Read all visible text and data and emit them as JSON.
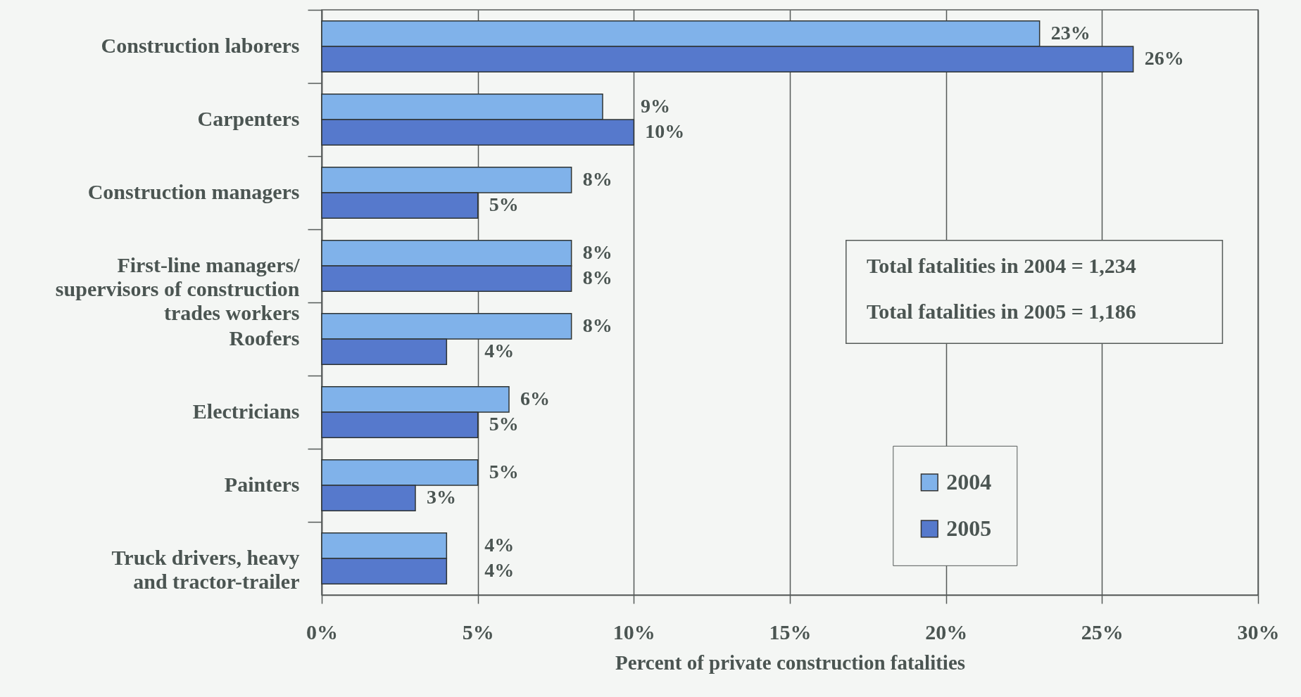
{
  "chart_data": {
    "type": "bar",
    "orientation": "horizontal",
    "categories": [
      "Construction laborers",
      "Carpenters",
      "Construction managers",
      "First-line managers/\nsupervisors of construction\ntrades workers",
      "Roofers",
      "Electricians",
      "Painters",
      "Truck drivers, heavy\nand tractor-trailer"
    ],
    "series": [
      {
        "name": "2004",
        "color": "#80b2ea",
        "values": [
          23,
          9,
          8,
          8,
          8,
          6,
          5,
          4
        ],
        "value_labels": [
          "23%",
          "9%",
          "8%",
          "8%",
          "8%",
          "6%",
          "5%",
          "4%"
        ]
      },
      {
        "name": "2005",
        "color": "#5679cc",
        "values": [
          26,
          10,
          5,
          8,
          4,
          5,
          3,
          4
        ],
        "value_labels": [
          "26%",
          "10%",
          "5%",
          "8%",
          "4%",
          "5%",
          "3%",
          "4%"
        ]
      }
    ],
    "xlabel": "Percent of private construction fatalities",
    "xlim": [
      0,
      30
    ],
    "xticks": [
      {
        "value": 0,
        "label": "0%"
      },
      {
        "value": 5,
        "label": "5%"
      },
      {
        "value": 10,
        "label": "10%"
      },
      {
        "value": 15,
        "label": "15%"
      },
      {
        "value": 20,
        "label": "20%"
      },
      {
        "value": 25,
        "label": "25%"
      },
      {
        "value": 30,
        "label": "30%"
      }
    ],
    "grid": "x",
    "legend": "bottom right",
    "annotations": [
      "Total fatalities in 2004 = 1,234",
      "Total fatalities in 2005 = 1,186"
    ]
  }
}
